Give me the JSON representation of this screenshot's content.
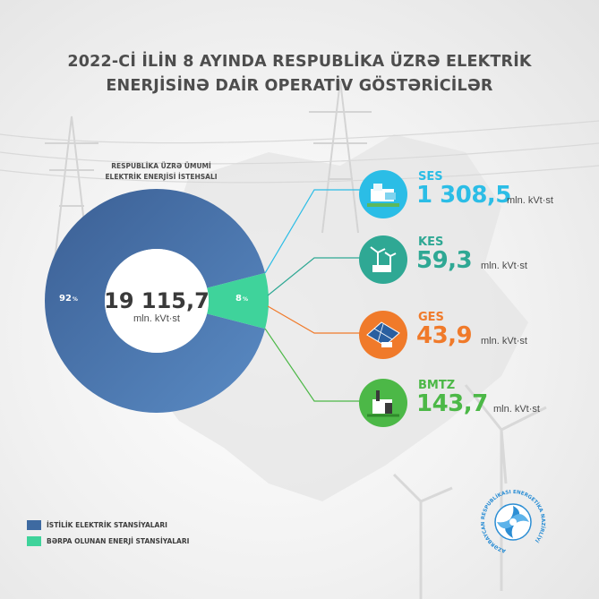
{
  "title": {
    "line1": "2022-Cİ İLİN 8 AYINDA RESPUBLİKA ÜZRƏ ELEKTRİK",
    "line2": "ENERJİSİNƏ DAİR OPERATİV GÖSTƏRİCİLƏR"
  },
  "subtitle": {
    "line1": "RESPUBLİKA ÜZRƏ ÜMUMİ",
    "line2": "ELEKTRİK ENERJİSİ İSTEHSALI"
  },
  "total": {
    "value": "19 115,7",
    "unit": "mln. kVt·st"
  },
  "chart_data": {
    "type": "pie",
    "title": "RESPUBLİKA ÜZRƏ ÜMUMİ ELEKTRİK ENERJİSİ İSTEHSALI",
    "donut": true,
    "total_label": "19 115,7",
    "total_unit": "mln. kVt·st",
    "slices": [
      {
        "name": "İSTİLİK ELEKTRİK STANSİYALARI",
        "value": 92,
        "label": "92",
        "color": "#3e6aa1"
      },
      {
        "name": "BƏRPA OLUNAN ENERJİ STANSİYALARI",
        "value": 8,
        "label": "8",
        "color": "#3fd39b"
      }
    ],
    "percent_symbol": "%",
    "breakdown_of_slice": "BƏRPA OLUNAN ENERJİ STANSİYALARI",
    "breakdown": [
      {
        "name": "SES",
        "value": 1308.5,
        "display": "1 308,5",
        "unit": "mln. kVt·st",
        "color": "#2bbde6",
        "icon": "solar-station-icon"
      },
      {
        "name": "KES",
        "value": 59.3,
        "display": "59,3",
        "unit": "mln. kVt·st",
        "color": "#2fa894",
        "icon": "wind-turbine-icon"
      },
      {
        "name": "GES",
        "value": 43.9,
        "display": "43,9",
        "unit": "mln. kVt·st",
        "color": "#f07a2a",
        "icon": "solar-panel-icon"
      },
      {
        "name": "BMTZ",
        "value": 143.7,
        "display": "143,7",
        "unit": "mln. kVt·st",
        "color": "#4cb847",
        "icon": "waste-plant-icon"
      }
    ]
  },
  "legend": [
    {
      "label": "İSTİLİK ELEKTRİK STANSİYALARI",
      "color": "#3e6aa1"
    },
    {
      "label": "BƏRPA OLUNAN ENERJİ STANSİYALARI",
      "color": "#3fd39b"
    }
  ],
  "logo": {
    "text": "AZƏRBAYCAN RESPUBLİKASI ENERGETİKA NAZİRLİYİ",
    "icon": "ministry-logo-icon",
    "color": "#2c8ed4"
  }
}
